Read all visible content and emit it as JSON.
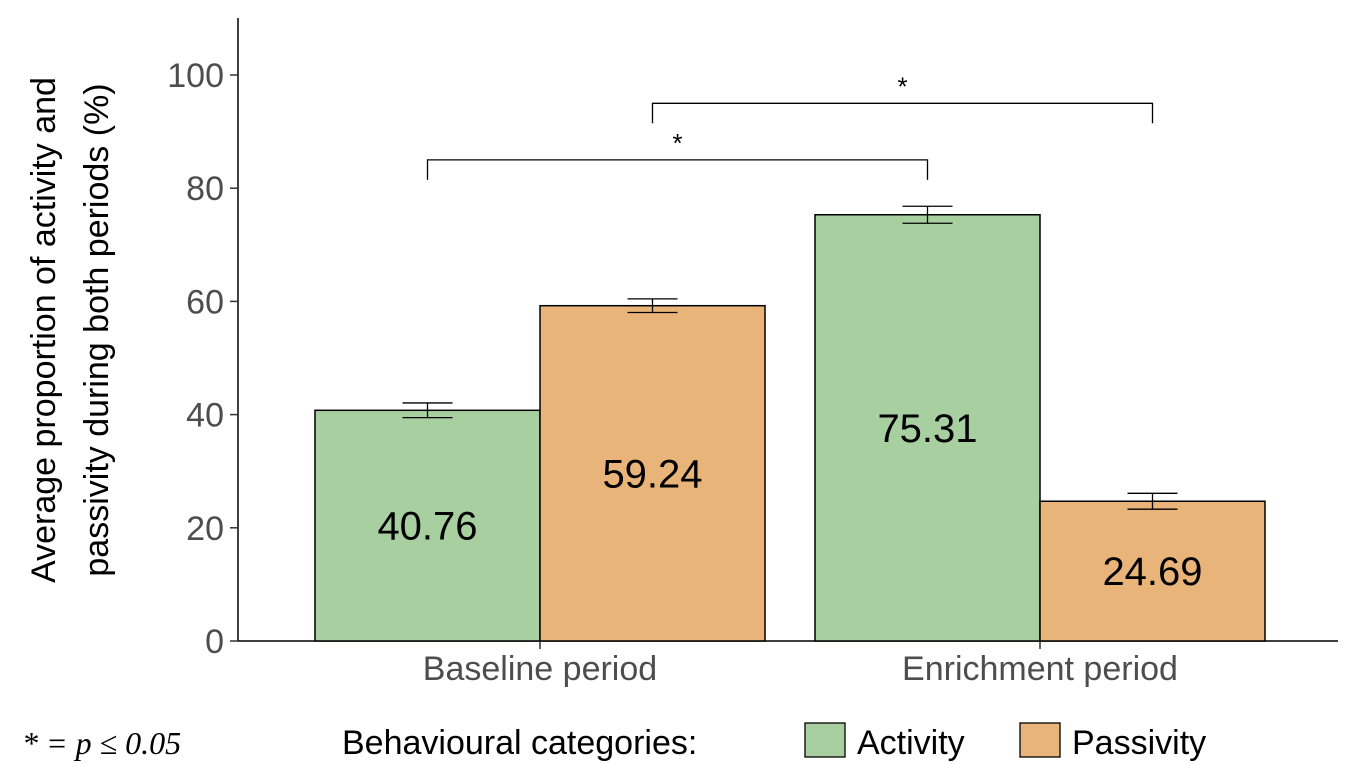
{
  "chart_data": {
    "type": "bar",
    "categories": [
      "Baseline period",
      "Enrichment period"
    ],
    "series": [
      {
        "name": "Activity",
        "values": [
          40.76,
          75.31
        ],
        "errors": [
          1.3,
          1.5
        ],
        "color": "#a8cfa0"
      },
      {
        "name": "Passivity",
        "values": [
          59.24,
          24.69
        ],
        "errors": [
          1.2,
          1.4
        ],
        "color": "#e8b47a"
      }
    ],
    "data_labels": [
      [
        "40.76",
        "75.31"
      ],
      [
        "59.24",
        "24.69"
      ]
    ],
    "ylabel_lines": [
      "Average proportion of activity and",
      "passivity during both periods (%)"
    ],
    "xlabel": "",
    "ylim": [
      0,
      110
    ],
    "yticks": [
      0,
      20,
      40,
      60,
      80,
      100
    ],
    "grid": false,
    "legend": {
      "title": "Behavioural categories:",
      "placement": "bottom"
    },
    "significance": [
      {
        "label": "*",
        "from": "Baseline period / Activity",
        "to": "Enrichment period / Activity",
        "y": 85
      },
      {
        "label": "*",
        "from": "Baseline period / Passivity",
        "to": "Enrichment period / Passivity",
        "y": 95
      }
    ],
    "footnote": "* = p ≤ 0.05"
  }
}
